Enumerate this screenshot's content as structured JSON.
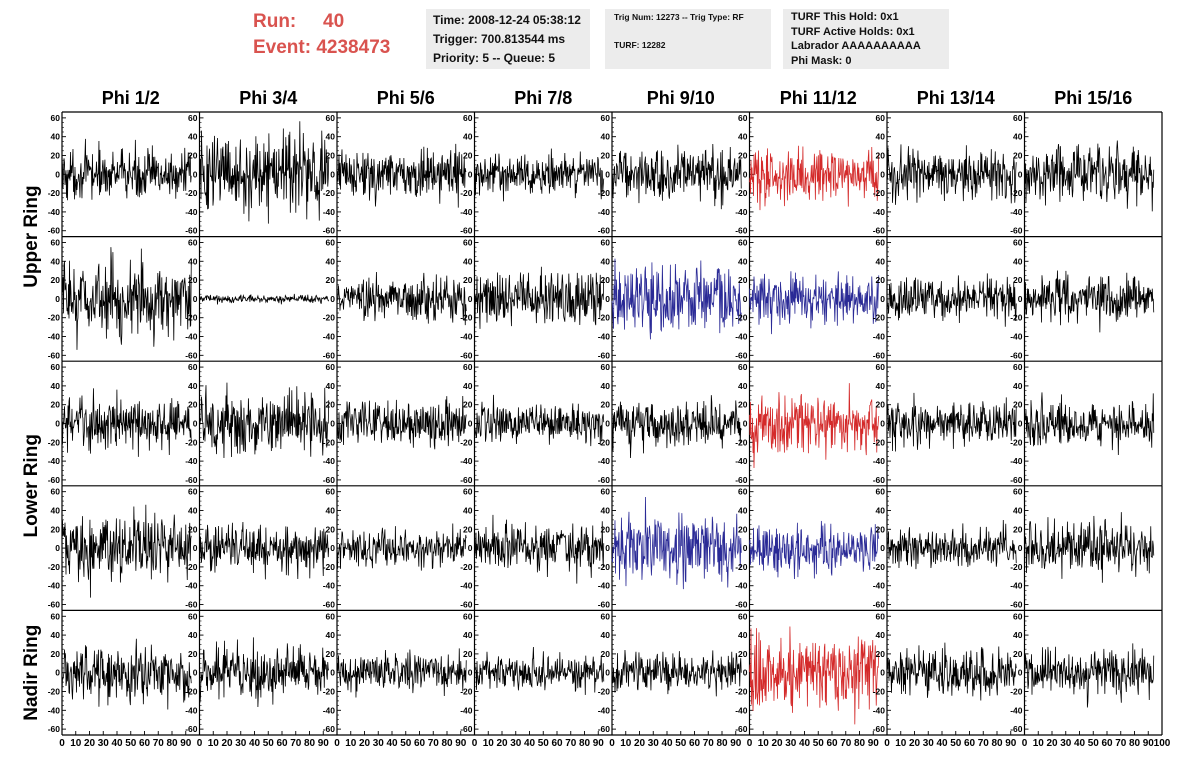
{
  "header": {
    "run_label": "Run:",
    "run_value": "40",
    "event_label": "Event:",
    "event_value": "4238473"
  },
  "info_box_1": {
    "time": "Time: 2008-12-24 05:38:12",
    "trigger": "Trigger: 700.813544 ms",
    "priority": "Priority: 5 -- Queue: 5"
  },
  "info_box_2": {
    "trig": "Trig Num: 12273 -- Trig Type: RF",
    "turf": "TURF: 12282"
  },
  "info_box_3": {
    "this_hold": "TURF This Hold: 0x1",
    "active_holds": "TURF Active Holds: 0x1",
    "labrador": "Labrador AAAAAAAAAA",
    "phi_mask": "Phi Mask: 0"
  },
  "colors": {
    "header_text": "#d9534f",
    "info_bg": "#ececec",
    "trace_default": "#000000",
    "trace_red": "#d42a2a",
    "trace_blue": "#2a2a96"
  },
  "chart_data": {
    "type": "line",
    "description": "Grid of waveform traces: 5 rows x 8 columns",
    "columns": [
      "Phi 1/2",
      "Phi 3/4",
      "Phi 5/6",
      "Phi 7/8",
      "Phi 9/10",
      "Phi 11/12",
      "Phi 13/14",
      "Phi 15/16"
    ],
    "ring_labels": [
      {
        "label": "Upper Ring",
        "rows": [
          0,
          1
        ]
      },
      {
        "label": "Lower Ring",
        "rows": [
          2,
          3
        ]
      },
      {
        "label": "Nadir Ring",
        "rows": [
          4
        ]
      }
    ],
    "ylim": [
      -62,
      62
    ],
    "yticks": [
      -60,
      -40,
      -20,
      0,
      20,
      40,
      60
    ],
    "xlim": [
      0,
      100
    ],
    "xticks": [
      0,
      10,
      20,
      30,
      40,
      50,
      60,
      70,
      80,
      90,
      100
    ],
    "xtick_text": [
      "0",
      "10",
      "20",
      "30",
      "40",
      "50",
      "60",
      "70",
      "80",
      "90",
      "100"
    ],
    "last_column_xtick_text": [
      "0",
      "10",
      "20",
      "30",
      "40",
      "50",
      "60",
      "70",
      "80",
      "90",
      "100"
    ],
    "samples_per_trace": 260,
    "trace_x_extent": [
      0,
      94
    ],
    "panels": [
      [
        {
          "amplitude": 13,
          "color": "black"
        },
        {
          "amplitude": 20,
          "color": "black"
        },
        {
          "amplitude": 13,
          "color": "black"
        },
        {
          "amplitude": 11,
          "color": "black"
        },
        {
          "amplitude": 14,
          "color": "black"
        },
        {
          "amplitude": 14,
          "color": "red"
        },
        {
          "amplitude": 13,
          "color": "black"
        },
        {
          "amplitude": 15,
          "color": "black"
        }
      ],
      [
        {
          "amplitude": 20,
          "color": "black"
        },
        {
          "amplitude": 2,
          "color": "black"
        },
        {
          "amplitude": 11,
          "color": "black"
        },
        {
          "amplitude": 14,
          "color": "black"
        },
        {
          "amplitude": 18,
          "color": "blue"
        },
        {
          "amplitude": 13,
          "color": "blue"
        },
        {
          "amplitude": 11,
          "color": "black"
        },
        {
          "amplitude": 13,
          "color": "black"
        }
      ],
      [
        {
          "amplitude": 14,
          "color": "black"
        },
        {
          "amplitude": 17,
          "color": "black"
        },
        {
          "amplitude": 12,
          "color": "black"
        },
        {
          "amplitude": 11,
          "color": "black"
        },
        {
          "amplitude": 13,
          "color": "black"
        },
        {
          "amplitude": 16,
          "color": "red"
        },
        {
          "amplitude": 12,
          "color": "black"
        },
        {
          "amplitude": 12,
          "color": "black"
        }
      ],
      [
        {
          "amplitude": 19,
          "color": "black"
        },
        {
          "amplitude": 13,
          "color": "black"
        },
        {
          "amplitude": 10,
          "color": "black"
        },
        {
          "amplitude": 13,
          "color": "black"
        },
        {
          "amplitude": 18,
          "color": "blue"
        },
        {
          "amplitude": 13,
          "color": "blue"
        },
        {
          "amplitude": 10,
          "color": "black"
        },
        {
          "amplitude": 14,
          "color": "black"
        }
      ],
      [
        {
          "amplitude": 15,
          "color": "black"
        },
        {
          "amplitude": 14,
          "color": "black"
        },
        {
          "amplitude": 10,
          "color": "black"
        },
        {
          "amplitude": 9,
          "color": "black"
        },
        {
          "amplitude": 10,
          "color": "black"
        },
        {
          "amplitude": 20,
          "color": "red"
        },
        {
          "amplitude": 13,
          "color": "black"
        },
        {
          "amplitude": 13,
          "color": "black"
        }
      ]
    ]
  }
}
